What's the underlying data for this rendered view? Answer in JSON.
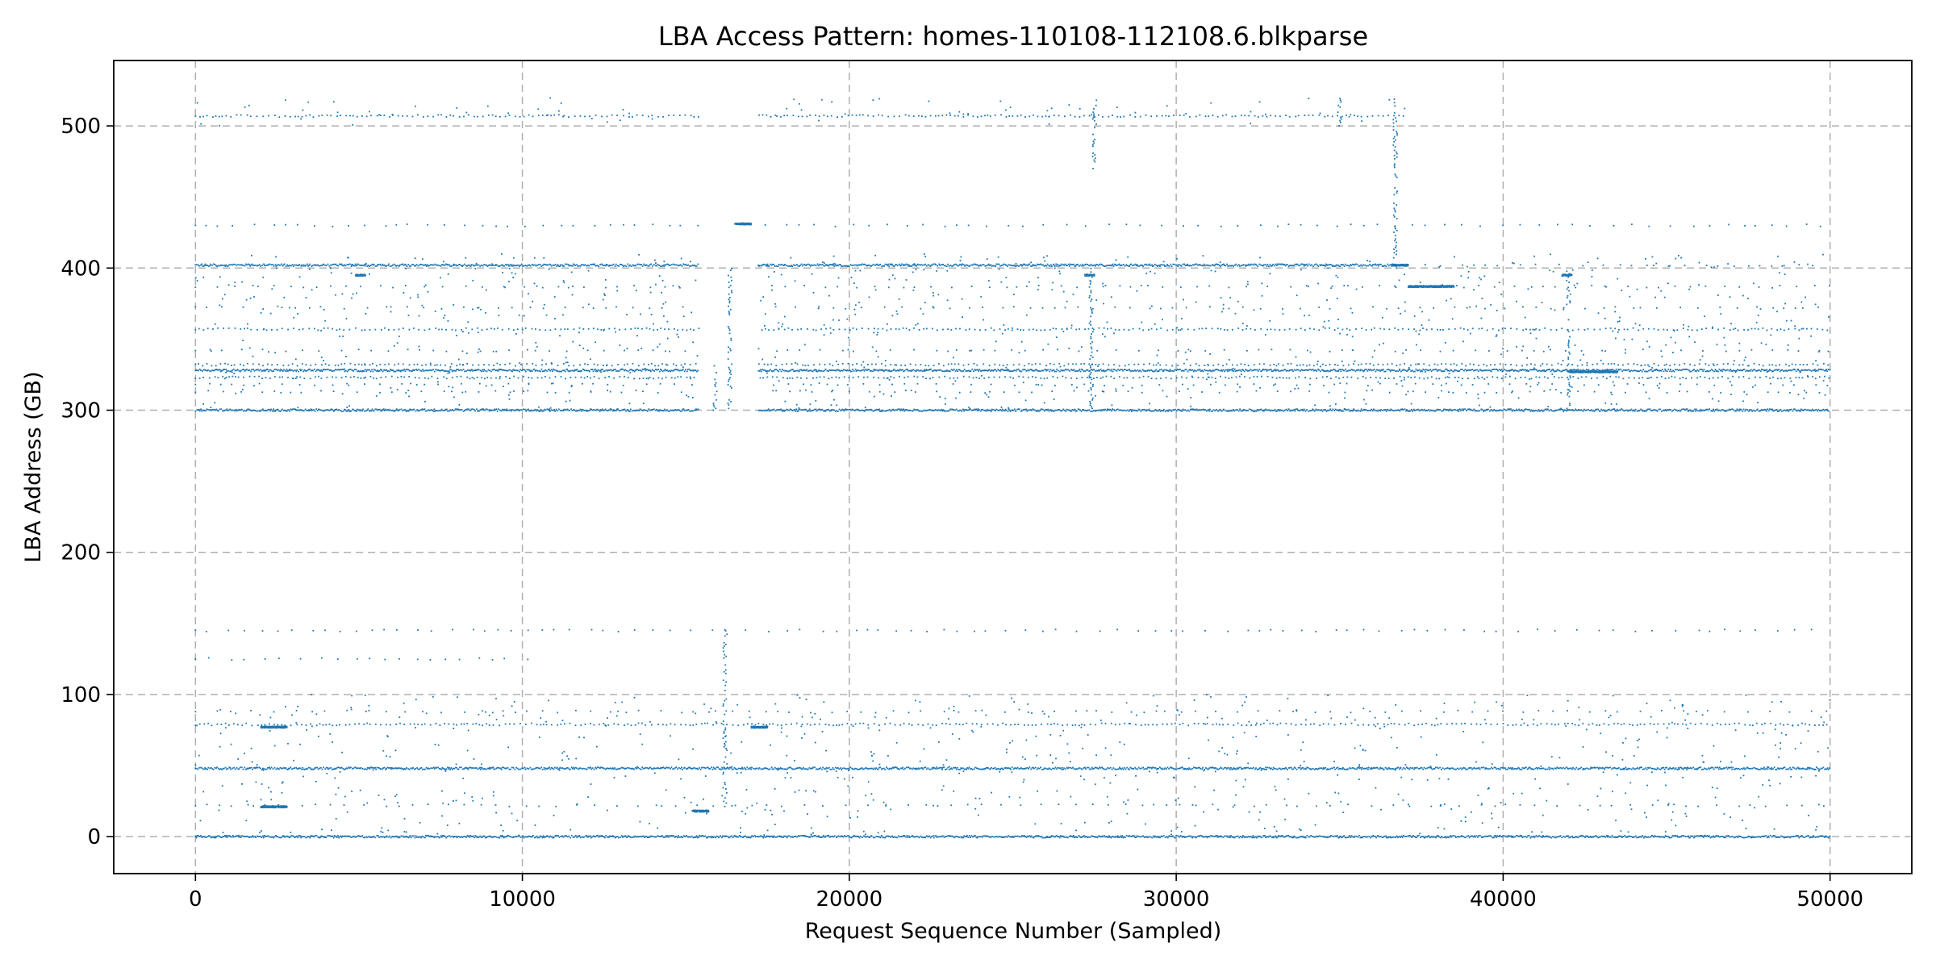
{
  "chart_data": {
    "type": "scatter",
    "title": "LBA Access Pattern: homes-110108-112108.6.blkparse",
    "xlabel": "Request Sequence Number (Sampled)",
    "ylabel": "LBA Address (GB)",
    "xlim": [
      -2500,
      52500
    ],
    "ylim": [
      -26,
      546
    ],
    "x_ticks": [
      0,
      10000,
      20000,
      30000,
      40000,
      50000
    ],
    "x_tick_labels": [
      "0",
      "10000",
      "20000",
      "30000",
      "40000",
      "50000"
    ],
    "y_ticks": [
      0,
      100,
      200,
      300,
      400,
      500
    ],
    "y_tick_labels": [
      "0",
      "100",
      "200",
      "300",
      "400",
      "500"
    ],
    "grid": true,
    "marker_color": "#1f77b4",
    "bands": [
      {
        "y": 300,
        "x_range": [
          0,
          50000
        ],
        "density": "dense"
      },
      {
        "y": 328,
        "x_range": [
          0,
          50000
        ],
        "density": "dense"
      },
      {
        "y": 332,
        "x_range": [
          0,
          50000
        ],
        "density": "medium"
      },
      {
        "y": 402,
        "x_range": [
          0,
          37000
        ],
        "density": "dense"
      },
      {
        "y": 402,
        "x_range": [
          37000,
          50000
        ],
        "density": "sparse"
      },
      {
        "y": 357,
        "x_range": [
          0,
          50000
        ],
        "density": "medium"
      },
      {
        "y": 507,
        "x_range": [
          0,
          37000
        ],
        "density": "medium"
      },
      {
        "y": 430,
        "x_range": [
          0,
          50000
        ],
        "density": "sparse"
      },
      {
        "y": 0,
        "x_range": [
          0,
          50000
        ],
        "density": "dense"
      },
      {
        "y": 48,
        "x_range": [
          0,
          50000
        ],
        "density": "dense"
      },
      {
        "y": 79,
        "x_range": [
          0,
          50000
        ],
        "density": "medium"
      },
      {
        "y": 22,
        "x_range": [
          0,
          50000
        ],
        "density": "sparse"
      },
      {
        "y": 88,
        "x_range": [
          0,
          50000
        ],
        "density": "sparse"
      },
      {
        "y": 125,
        "x_range": [
          0,
          10500
        ],
        "density": "sparse"
      },
      {
        "y": 145,
        "x_range": [
          0,
          50000
        ],
        "density": "sparse"
      },
      {
        "y": 387,
        "x_range": [
          0,
          50000
        ],
        "density": "sparse"
      },
      {
        "y": 372,
        "x_range": [
          0,
          50000
        ],
        "density": "sparse"
      },
      {
        "y": 342,
        "x_range": [
          0,
          50000
        ],
        "density": "sparse"
      },
      {
        "y": 313,
        "x_range": [
          0,
          50000
        ],
        "density": "sparse"
      },
      {
        "y": 318,
        "x_range": [
          0,
          50000
        ],
        "density": "sparse"
      },
      {
        "y": 323,
        "x_range": [
          0,
          50000
        ],
        "density": "medium"
      }
    ],
    "segments": [
      {
        "x0": 2000,
        "x1": 2800,
        "y": 21
      },
      {
        "x0": 2000,
        "x1": 2800,
        "y": 77
      },
      {
        "x0": 15200,
        "x1": 15700,
        "y": 18
      },
      {
        "x0": 16500,
        "x1": 17000,
        "y": 431
      },
      {
        "x0": 17000,
        "x1": 17500,
        "y": 77
      },
      {
        "x0": 36600,
        "x1": 37100,
        "y": 402
      },
      {
        "x0": 37100,
        "x1": 38500,
        "y": 387
      },
      {
        "x0": 42000,
        "x1": 43500,
        "y": 327
      },
      {
        "x0": 4900,
        "x1": 5200,
        "y": 395
      },
      {
        "x0": 27200,
        "x1": 27500,
        "y": 395
      },
      {
        "x0": 41800,
        "x1": 42100,
        "y": 395
      }
    ],
    "vertical_streaks": [
      {
        "x": 16200,
        "y0": 20,
        "y1": 145
      },
      {
        "x": 16350,
        "y0": 300,
        "y1": 400
      },
      {
        "x": 15900,
        "y0": 300,
        "y1": 332
      },
      {
        "x": 36700,
        "y0": 400,
        "y1": 520
      },
      {
        "x": 35000,
        "y0": 500,
        "y1": 520
      },
      {
        "x": 27500,
        "y0": 470,
        "y1": 520
      },
      {
        "x": 42000,
        "y0": 300,
        "y1": 400
      },
      {
        "x": 27400,
        "y0": 300,
        "y1": 400
      }
    ],
    "gaps": [
      {
        "x0": 15400,
        "x1": 17200,
        "y_min": 290,
        "y_max": 520
      }
    ]
  }
}
